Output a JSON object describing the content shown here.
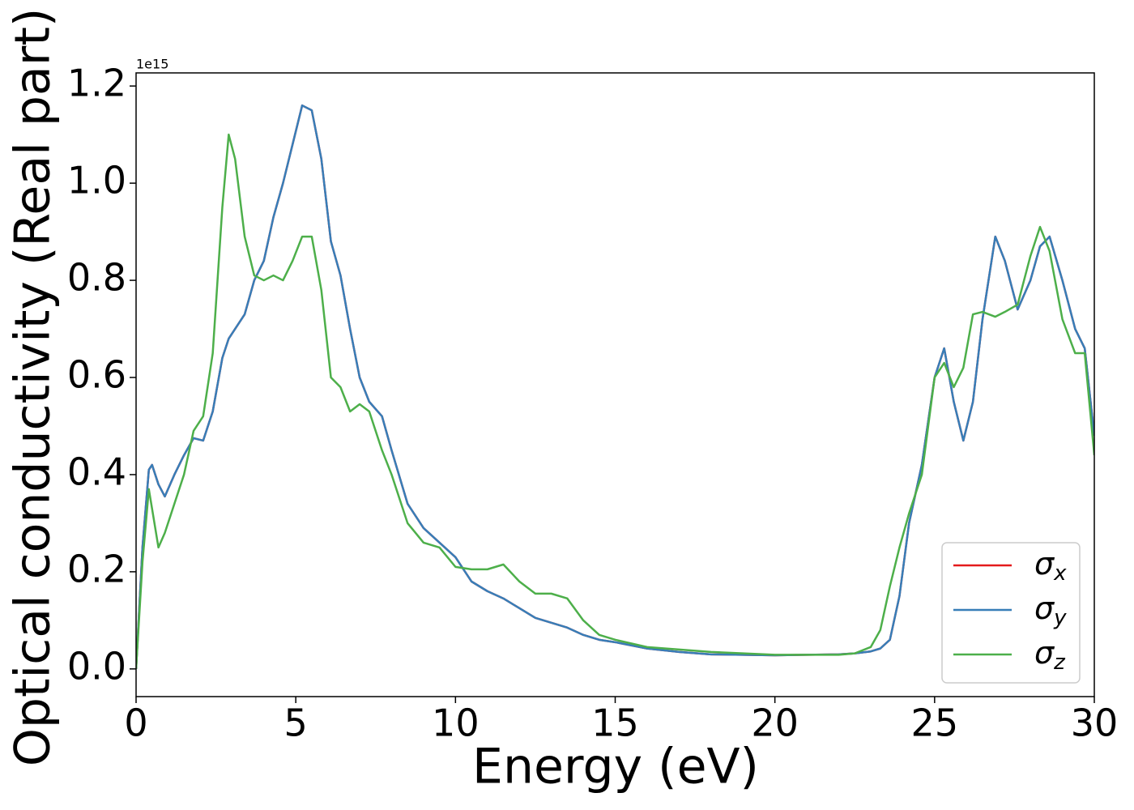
{
  "chart_data": {
    "type": "line",
    "xlabel": "Energy (eV)",
    "ylabel": "Optical conductivity (Real part)",
    "y_offset_label": "1e15",
    "x": [
      0,
      0.2,
      0.4,
      0.5,
      0.7,
      0.9,
      1.2,
      1.5,
      1.8,
      2.1,
      2.4,
      2.7,
      2.9,
      3.1,
      3.4,
      3.7,
      4.0,
      4.3,
      4.6,
      4.9,
      5.2,
      5.5,
      5.8,
      6.1,
      6.4,
      6.7,
      7.0,
      7.3,
      7.7,
      8.0,
      8.5,
      9.0,
      9.5,
      10,
      10.5,
      11,
      11.5,
      12,
      12.5,
      13,
      13.5,
      14,
      14.5,
      15,
      16,
      17,
      18,
      19,
      20,
      21,
      22,
      22.5,
      23,
      23.3,
      23.6,
      23.9,
      24.2,
      24.6,
      25,
      25.3,
      25.6,
      25.9,
      26.2,
      26.5,
      26.9,
      27.2,
      27.6,
      28,
      28.3,
      28.6,
      29,
      29.4,
      29.7,
      30
    ],
    "series": [
      {
        "name": "σx",
        "color": "#e41a1c",
        "values": [
          0,
          0.25,
          0.41,
          0.42,
          0.38,
          0.355,
          0.4,
          0.44,
          0.475,
          0.47,
          0.53,
          0.64,
          0.68,
          0.7,
          0.73,
          0.8,
          0.84,
          0.93,
          1.0,
          1.08,
          1.16,
          1.15,
          1.05,
          0.88,
          0.81,
          0.7,
          0.6,
          0.55,
          0.52,
          0.45,
          0.34,
          0.29,
          0.26,
          0.23,
          0.18,
          0.16,
          0.145,
          0.125,
          0.105,
          0.095,
          0.085,
          0.07,
          0.06,
          0.055,
          0.042,
          0.035,
          0.03,
          0.029,
          0.028,
          0.029,
          0.03,
          0.032,
          0.036,
          0.042,
          0.06,
          0.15,
          0.3,
          0.42,
          0.6,
          0.66,
          0.55,
          0.47,
          0.55,
          0.72,
          0.89,
          0.84,
          0.74,
          0.8,
          0.87,
          0.89,
          0.8,
          0.7,
          0.66,
          0.48
        ]
      },
      {
        "name": "σy",
        "color": "#377eb8",
        "values": [
          0,
          0.25,
          0.41,
          0.42,
          0.38,
          0.355,
          0.4,
          0.44,
          0.475,
          0.47,
          0.53,
          0.64,
          0.68,
          0.7,
          0.73,
          0.8,
          0.84,
          0.93,
          1.0,
          1.08,
          1.16,
          1.15,
          1.05,
          0.88,
          0.81,
          0.7,
          0.6,
          0.55,
          0.52,
          0.45,
          0.34,
          0.29,
          0.26,
          0.23,
          0.18,
          0.16,
          0.145,
          0.125,
          0.105,
          0.095,
          0.085,
          0.07,
          0.06,
          0.055,
          0.042,
          0.035,
          0.03,
          0.029,
          0.028,
          0.029,
          0.03,
          0.032,
          0.036,
          0.042,
          0.06,
          0.15,
          0.3,
          0.42,
          0.6,
          0.66,
          0.55,
          0.47,
          0.55,
          0.72,
          0.89,
          0.84,
          0.74,
          0.8,
          0.87,
          0.89,
          0.8,
          0.7,
          0.66,
          0.48
        ]
      },
      {
        "name": "σz",
        "color": "#4daf4a",
        "values": [
          0,
          0.22,
          0.37,
          0.33,
          0.25,
          0.28,
          0.34,
          0.4,
          0.49,
          0.52,
          0.65,
          0.95,
          1.1,
          1.05,
          0.89,
          0.81,
          0.8,
          0.81,
          0.8,
          0.84,
          0.89,
          0.89,
          0.78,
          0.6,
          0.58,
          0.53,
          0.545,
          0.53,
          0.45,
          0.4,
          0.3,
          0.26,
          0.25,
          0.21,
          0.205,
          0.205,
          0.215,
          0.18,
          0.155,
          0.155,
          0.145,
          0.1,
          0.07,
          0.06,
          0.045,
          0.04,
          0.035,
          0.032,
          0.029,
          0.029,
          0.029,
          0.032,
          0.045,
          0.08,
          0.17,
          0.25,
          0.32,
          0.4,
          0.6,
          0.63,
          0.58,
          0.62,
          0.73,
          0.735,
          0.725,
          0.735,
          0.75,
          0.85,
          0.91,
          0.86,
          0.72,
          0.65,
          0.65,
          0.44
        ]
      }
    ],
    "xlim": [
      0,
      30
    ],
    "xticks": [
      0,
      5,
      10,
      15,
      20,
      25,
      30
    ],
    "ylim": [
      -0.057,
      1.227
    ],
    "yticks": [
      {
        "value": 0,
        "label": "0.0"
      },
      0.2,
      0.4,
      0.6,
      0.8,
      {
        "value": 1,
        "label": "1.0"
      },
      1.2
    ],
    "legend": "lower right"
  }
}
